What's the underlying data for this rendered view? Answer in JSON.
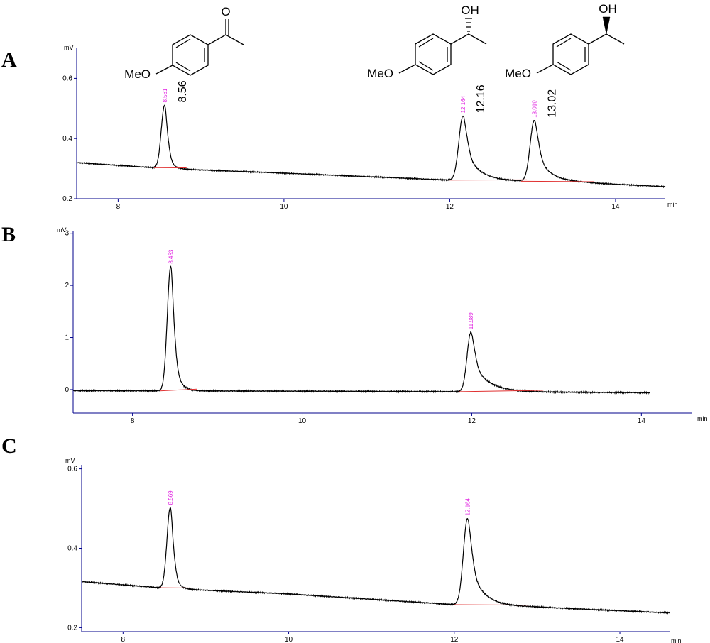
{
  "chart_data": [
    {
      "type": "line",
      "panel": "A",
      "yunit": "mV",
      "xunit": "min",
      "xlim": [
        7.5,
        14.6
      ],
      "ylim": [
        0.2,
        0.7
      ],
      "xticks": [
        8,
        10,
        12,
        14
      ],
      "yticks": [
        0.2,
        0.4,
        0.6
      ],
      "baseline": {
        "x": [
          7.5,
          8.6,
          10.0,
          12.0,
          12.9,
          13.5,
          14.6
        ],
        "y": [
          0.32,
          0.3,
          0.285,
          0.262,
          0.258,
          0.255,
          0.24
        ]
      },
      "peaks": [
        {
          "rt": 8.56,
          "height": 0.51,
          "width": 0.04,
          "tail": 0.05,
          "label": "8.561",
          "big_label": "8.56"
        },
        {
          "rt": 12.16,
          "height": 0.475,
          "width": 0.05,
          "tail": 0.16,
          "label": "12.164",
          "big_label": "12.16"
        },
        {
          "rt": 13.02,
          "height": 0.46,
          "width": 0.05,
          "tail": 0.15,
          "label": "13.019",
          "big_label": "13.02"
        }
      ],
      "structures": [
        {
          "group": "MeO",
          "substituent": "O"
        },
        {
          "group": "MeO",
          "substituent": "OH"
        },
        {
          "group": "MeO",
          "substituent": "OH"
        }
      ]
    },
    {
      "type": "line",
      "panel": "B",
      "yunit": "mV",
      "xunit": "min",
      "xlim": [
        7.3,
        14.6
      ],
      "ylim": [
        -0.45,
        3.05
      ],
      "xticks": [
        8,
        10,
        12,
        14
      ],
      "yticks": [
        0,
        1,
        2,
        3
      ],
      "baseline": {
        "x": [
          7.3,
          10.0,
          12.0,
          14.1
        ],
        "y": [
          -0.02,
          -0.03,
          -0.04,
          -0.06
        ]
      },
      "trace_end": 14.1,
      "peaks": [
        {
          "rt": 8.45,
          "height": 2.36,
          "width": 0.04,
          "tail": 0.06,
          "label": "8.453"
        },
        {
          "rt": 11.99,
          "height": 1.1,
          "width": 0.045,
          "tail": 0.18,
          "label": "11.989"
        }
      ]
    },
    {
      "type": "line",
      "panel": "C",
      "yunit": "mV",
      "xunit": "min",
      "xlim": [
        7.5,
        14.6
      ],
      "ylim": [
        0.19,
        0.61
      ],
      "xticks": [
        8,
        10,
        12,
        14
      ],
      "yticks": [
        0.2,
        0.4,
        0.6
      ],
      "baseline": {
        "x": [
          7.5,
          8.6,
          10.0,
          12.0,
          13.0,
          14.5
        ],
        "y": [
          0.316,
          0.298,
          0.285,
          0.258,
          0.252,
          0.238
        ]
      },
      "peaks": [
        {
          "rt": 8.57,
          "height": 0.502,
          "width": 0.04,
          "tail": 0.05,
          "label": "8.569"
        },
        {
          "rt": 12.16,
          "height": 0.475,
          "width": 0.05,
          "tail": 0.15,
          "label": "12.164"
        }
      ]
    }
  ]
}
